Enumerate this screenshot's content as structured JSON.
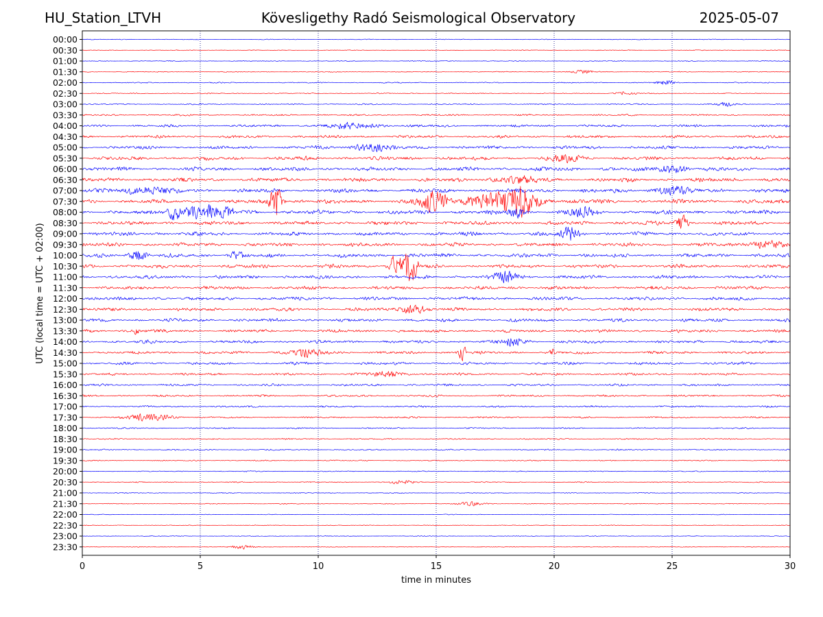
{
  "header": {
    "station": "HU_Station_LTVH",
    "observatory": "Kövesligethy Radó Seismological Observatory",
    "date": "2025-05-07"
  },
  "chart_data": {
    "type": "line",
    "title": "Kövesligethy Radó Seismological Observatory",
    "xlabel": "time in minutes",
    "ylabel": "UTC (local time = UTC + 02:00)",
    "xlim": [
      0,
      30
    ],
    "xticks": [
      "0",
      "5",
      "10",
      "15",
      "20",
      "25",
      "30"
    ],
    "grid": "vertical dotted lines at 5-minute intervals",
    "row_labels": [
      "00:00",
      "00:30",
      "01:00",
      "01:30",
      "02:00",
      "02:30",
      "03:00",
      "03:30",
      "04:00",
      "04:30",
      "05:00",
      "05:30",
      "06:00",
      "06:30",
      "07:00",
      "07:30",
      "08:00",
      "08:30",
      "09:00",
      "09:30",
      "10:00",
      "10:30",
      "11:00",
      "11:30",
      "12:00",
      "12:30",
      "13:00",
      "13:30",
      "14:00",
      "14:30",
      "15:00",
      "15:30",
      "16:00",
      "16:30",
      "17:00",
      "17:30",
      "18:00",
      "18:30",
      "19:00",
      "19:30",
      "20:00",
      "20:30",
      "21:00",
      "21:30",
      "22:00",
      "22:30",
      "23:00",
      "23:30"
    ],
    "colors": {
      "even_rows": "#0000ff",
      "odd_rows": "#ff0000",
      "grid": "#000080"
    },
    "noise_level": [
      0.5,
      0.5,
      0.6,
      0.6,
      0.8,
      0.7,
      0.9,
      1.2,
      1.8,
      2.0,
      2.3,
      2.6,
      2.8,
      2.8,
      3.0,
      3.0,
      3.0,
      2.8,
      2.8,
      2.6,
      2.8,
      2.6,
      2.5,
      2.5,
      2.5,
      2.4,
      2.3,
      2.2,
      2.2,
      2.0,
      2.0,
      1.8,
      1.6,
      1.5,
      1.3,
      1.2,
      1.0,
      0.9,
      0.9,
      0.8,
      0.7,
      0.7,
      0.6,
      0.6,
      0.5,
      0.5,
      0.5,
      0.5
    ],
    "events": [
      {
        "row": "01:30",
        "t": 21.2,
        "amp": 3,
        "width": 0.5
      },
      {
        "row": "02:00",
        "t": 24.7,
        "amp": 3,
        "width": 0.4
      },
      {
        "row": "02:30",
        "t": 23.0,
        "amp": 3,
        "width": 0.4
      },
      {
        "row": "03:00",
        "t": 27.3,
        "amp": 3,
        "width": 0.4
      },
      {
        "row": "04:00",
        "t": 11.5,
        "amp": 4,
        "width": 1.2
      },
      {
        "row": "05:00",
        "t": 12.3,
        "amp": 7,
        "width": 0.7
      },
      {
        "row": "05:30",
        "t": 20.5,
        "amp": 5,
        "width": 0.6
      },
      {
        "row": "06:00",
        "t": 25.0,
        "amp": 7,
        "width": 0.6
      },
      {
        "row": "06:30",
        "t": 18.5,
        "amp": 5,
        "width": 1.0
      },
      {
        "row": "07:00",
        "t": 2.5,
        "amp": 6,
        "width": 1.0
      },
      {
        "row": "07:00",
        "t": 25.0,
        "amp": 7,
        "width": 0.6
      },
      {
        "row": "07:30",
        "t": 8.2,
        "amp": 28,
        "width": 0.25
      },
      {
        "row": "07:30",
        "t": 14.9,
        "amp": 16,
        "width": 0.6
      },
      {
        "row": "07:30",
        "t": 17.8,
        "amp": 14,
        "width": 1.5
      },
      {
        "row": "07:30",
        "t": 18.6,
        "amp": 16,
        "width": 0.5
      },
      {
        "row": "08:00",
        "t": 3.9,
        "amp": 14,
        "width": 0.3
      },
      {
        "row": "08:00",
        "t": 4.7,
        "amp": 13,
        "width": 0.3
      },
      {
        "row": "08:00",
        "t": 5.4,
        "amp": 12,
        "width": 0.3
      },
      {
        "row": "08:00",
        "t": 6.1,
        "amp": 12,
        "width": 0.3
      },
      {
        "row": "08:00",
        "t": 18.4,
        "amp": 8,
        "width": 0.3
      },
      {
        "row": "08:00",
        "t": 21.2,
        "amp": 8,
        "width": 0.5
      },
      {
        "row": "08:30",
        "t": 25.4,
        "amp": 14,
        "width": 0.25
      },
      {
        "row": "09:00",
        "t": 20.7,
        "amp": 9,
        "width": 0.4
      },
      {
        "row": "09:30",
        "t": 29.0,
        "amp": 6,
        "width": 0.8
      },
      {
        "row": "10:00",
        "t": 2.4,
        "amp": 8,
        "width": 0.4
      },
      {
        "row": "10:00",
        "t": 6.5,
        "amp": 6,
        "width": 0.3
      },
      {
        "row": "10:30",
        "t": 13.3,
        "amp": 18,
        "width": 0.3
      },
      {
        "row": "10:30",
        "t": 13.9,
        "amp": 24,
        "width": 0.3
      },
      {
        "row": "11:00",
        "t": 18.0,
        "amp": 8,
        "width": 0.5
      },
      {
        "row": "12:30",
        "t": 14.0,
        "amp": 7,
        "width": 0.6
      },
      {
        "row": "13:30",
        "t": 2.3,
        "amp": 6,
        "width": 0.3
      },
      {
        "row": "14:00",
        "t": 18.3,
        "amp": 7,
        "width": 0.5
      },
      {
        "row": "14:30",
        "t": 9.5,
        "amp": 5,
        "width": 0.8
      },
      {
        "row": "14:30",
        "t": 16.1,
        "amp": 17,
        "width": 0.15
      },
      {
        "row": "14:30",
        "t": 19.9,
        "amp": 6,
        "width": 0.1
      },
      {
        "row": "15:30",
        "t": 13.0,
        "amp": 4,
        "width": 0.8
      },
      {
        "row": "17:30",
        "t": 2.8,
        "amp": 5,
        "width": 1.0
      },
      {
        "row": "20:30",
        "t": 13.5,
        "amp": 3,
        "width": 0.5
      },
      {
        "row": "21:30",
        "t": 16.5,
        "amp": 3,
        "width": 0.5
      },
      {
        "row": "23:30",
        "t": 6.8,
        "amp": 3,
        "width": 0.5
      }
    ]
  }
}
